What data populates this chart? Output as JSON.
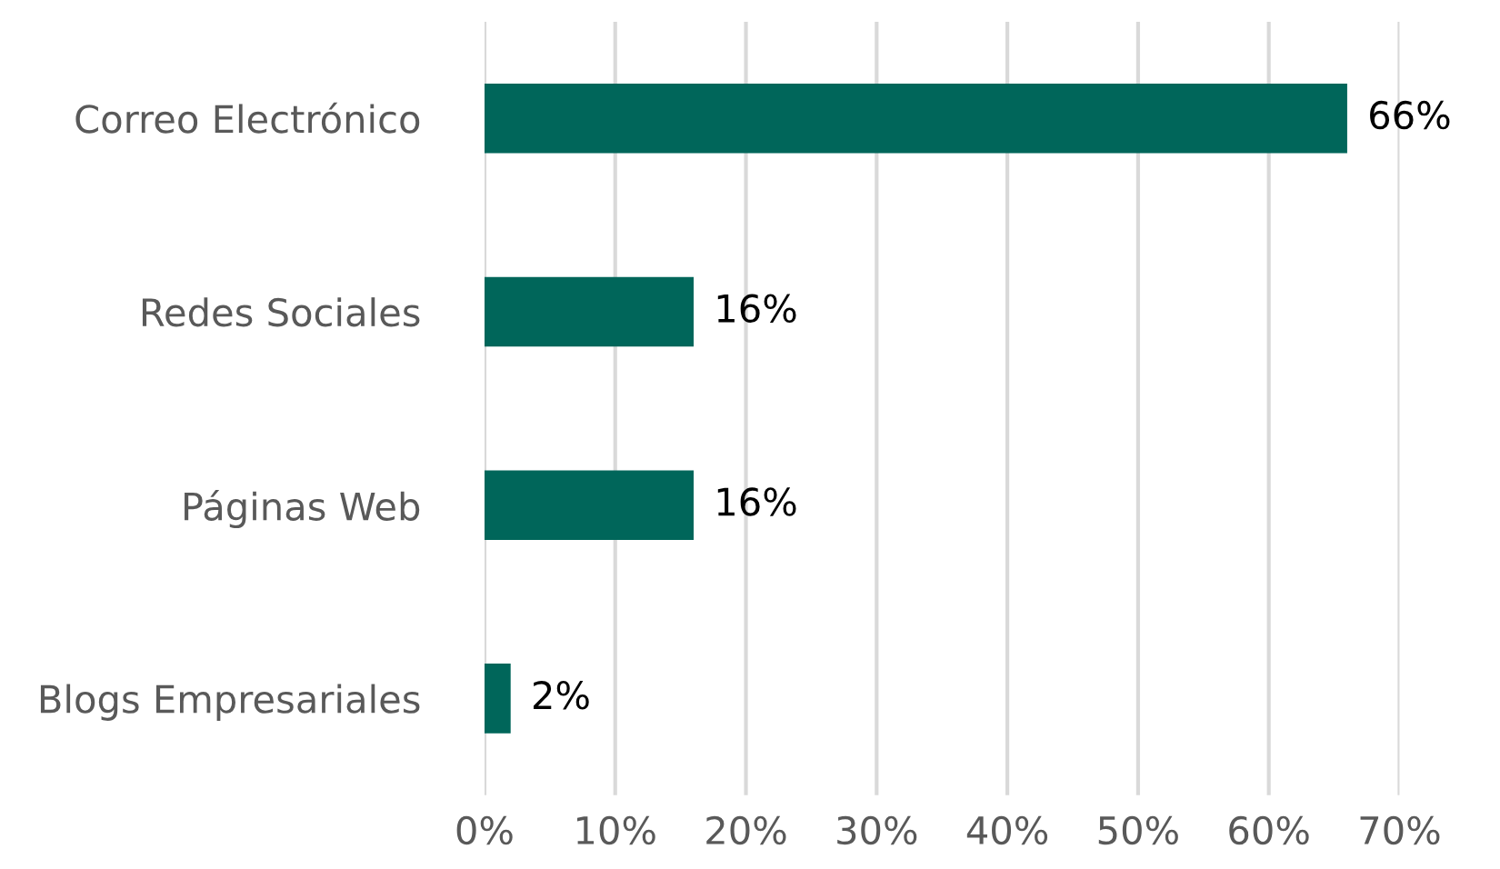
{
  "chart_data": {
    "type": "bar",
    "orientation": "horizontal",
    "categories": [
      "Correo Electrónico",
      "Redes Sociales",
      "Páginas Web",
      "Blogs Empresariales"
    ],
    "values": [
      66,
      16,
      16,
      2
    ],
    "value_labels": [
      "66%",
      "16%",
      "16%",
      "2%"
    ],
    "color": "#00665a",
    "xlim": [
      0,
      70
    ],
    "xticks": [
      {
        "value": 0,
        "label": "0%"
      },
      {
        "value": 10,
        "label": "10%"
      },
      {
        "value": 20,
        "label": "20%"
      },
      {
        "value": 30,
        "label": "30%"
      },
      {
        "value": 40,
        "label": "40%"
      },
      {
        "value": 50,
        "label": "50%"
      },
      {
        "value": 60,
        "label": "60%"
      },
      {
        "value": 70,
        "label": "70%"
      }
    ],
    "grid": "x"
  }
}
